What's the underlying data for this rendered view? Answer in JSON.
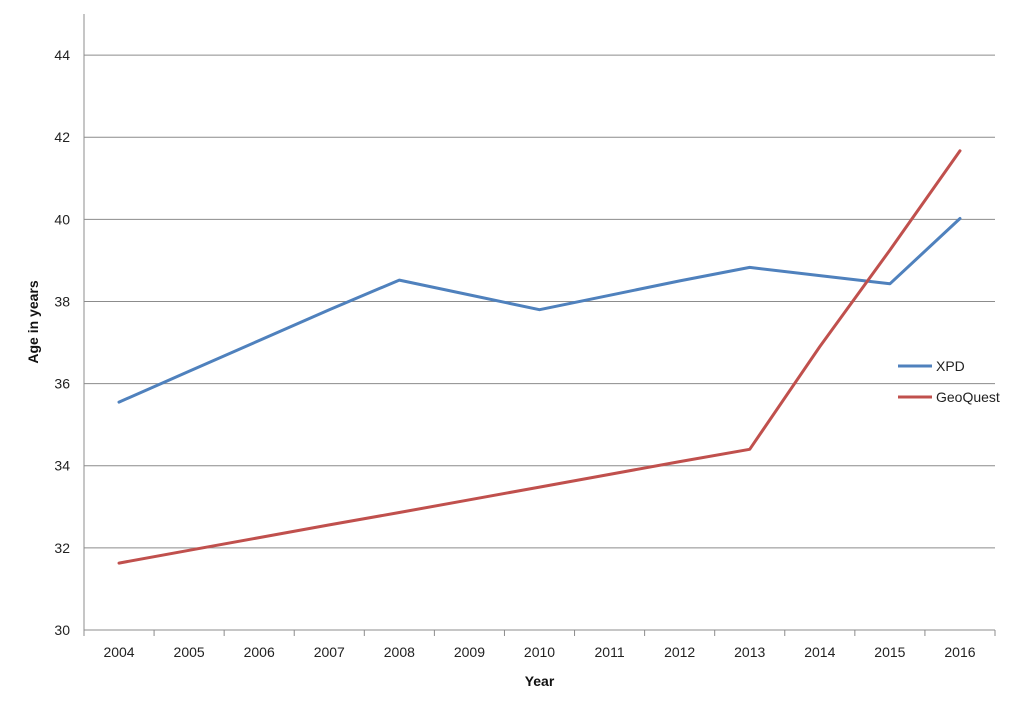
{
  "chart_data": {
    "type": "line",
    "title": "",
    "xlabel": "Year",
    "ylabel": "Age in years",
    "categories": [
      "2004",
      "2005",
      "2006",
      "2007",
      "2008",
      "2009",
      "2010",
      "2011",
      "2012",
      "2013",
      "2014",
      "2015",
      "2016"
    ],
    "ylim": [
      30,
      45
    ],
    "yticks": [
      30,
      32,
      34,
      36,
      38,
      40,
      42,
      44
    ],
    "grid": true,
    "legend": "right",
    "series": [
      {
        "name": "XPD",
        "color": "#4f81bd",
        "values": [
          35.55,
          36.3,
          37.05,
          37.8,
          38.52,
          38.16,
          37.8,
          38.15,
          38.5,
          38.83,
          38.63,
          38.43,
          40.02
        ]
      },
      {
        "name": "GeoQuest",
        "color": "#c0504d",
        "values": [
          31.63,
          31.94,
          32.25,
          32.56,
          32.86,
          33.17,
          33.48,
          33.79,
          34.1,
          34.4,
          36.9,
          39.25,
          41.67
        ]
      }
    ]
  }
}
